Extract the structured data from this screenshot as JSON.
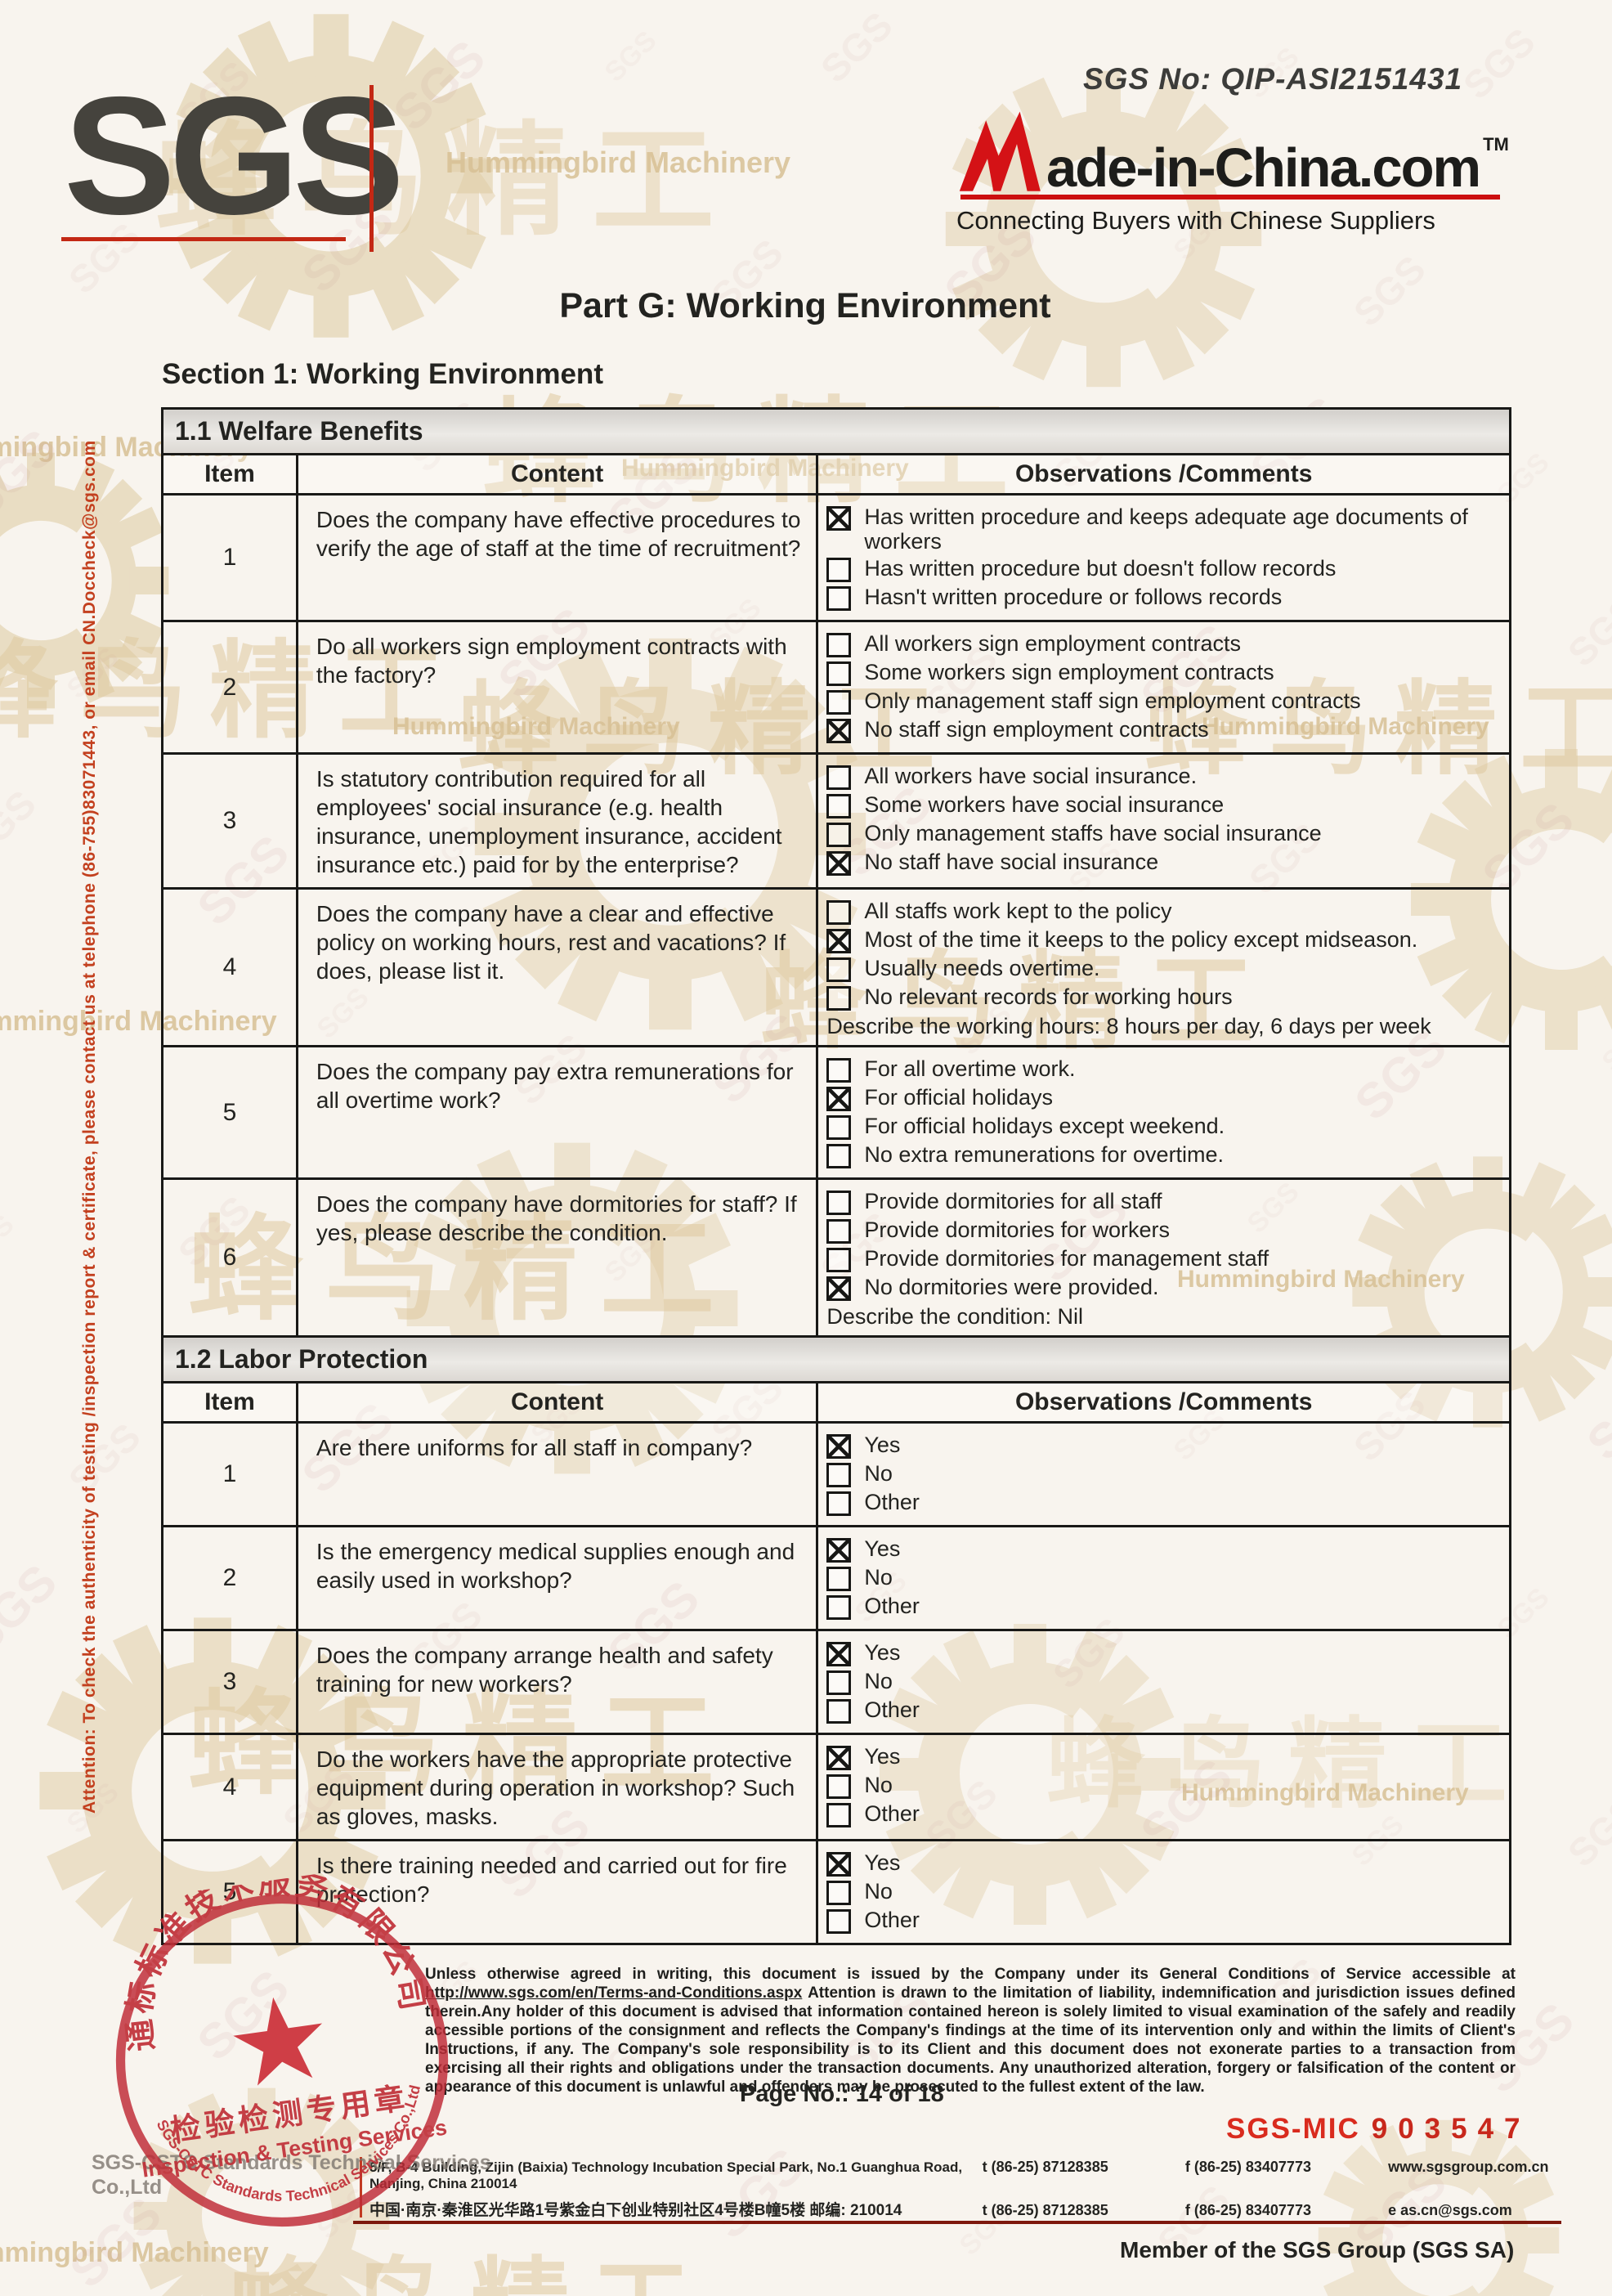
{
  "header": {
    "sgs_no": "SGS No: QIP-ASI2151431",
    "sgs_logo": "SGS",
    "mic_name": "ade-in-China.com",
    "mic_tm": "TM",
    "mic_tagline": "Connecting Buyers with Chinese Suppliers",
    "part_title": "Part G: Working Environment",
    "section_title": "Section 1: Working Environment"
  },
  "watermarks": {
    "sgs": "SGS",
    "hb_cn": "蜂鸟精工",
    "hb_en": "Hummingbird Machinery"
  },
  "attention": "Attention: To check the authenticity of testing /inspection report & certificate, please contact us at telephone  (86-755)83071443, or email  CN.Doccheck@sgs.com",
  "tables": [
    {
      "bar": "1.1 Welfare Benefits",
      "columns": [
        "Item",
        "Content",
        "Observations /Comments"
      ],
      "rows": [
        {
          "item": "1",
          "content": "Does the company have effective procedures to verify the age of staff at the time of recruitment?",
          "options": [
            {
              "checked": true,
              "label": "Has written procedure and keeps adequate age documents of workers"
            },
            {
              "checked": false,
              "label": "Has written procedure but doesn't follow records"
            },
            {
              "checked": false,
              "label": "Hasn't written procedure or follows records"
            }
          ]
        },
        {
          "item": "2",
          "content": "Do all workers sign employment contracts with the factory?",
          "options": [
            {
              "checked": false,
              "label": "All workers sign employment contracts"
            },
            {
              "checked": false,
              "label": "Some workers sign employment contracts"
            },
            {
              "checked": false,
              "label": "Only management staff sign employment contracts"
            },
            {
              "checked": true,
              "label": "No staff sign employment contracts"
            }
          ]
        },
        {
          "item": "3",
          "content": "Is statutory contribution required for all employees' social insurance (e.g. health insurance, unemployment insurance, accident insurance etc.) paid for by the enterprise?",
          "options": [
            {
              "checked": false,
              "label": "All workers have social insurance."
            },
            {
              "checked": false,
              "label": "Some workers have social insurance"
            },
            {
              "checked": false,
              "label": "Only management staffs have social insurance"
            },
            {
              "checked": true,
              "label": "No staff have social insurance"
            }
          ]
        },
        {
          "item": "4",
          "content": "Does the company have a clear and effective policy on working hours, rest and vacations? If does, please list it.",
          "options": [
            {
              "checked": false,
              "label": "All staffs work kept to the policy"
            },
            {
              "checked": true,
              "label": "Most of the time it keeps to the policy except midseason."
            },
            {
              "checked": false,
              "label": "Usually needs overtime."
            },
            {
              "checked": false,
              "label": "No relevant records for working hours"
            }
          ],
          "note": "Describe the working hours: 8 hours per day, 6 days per week"
        },
        {
          "item": "5",
          "content": "Does the company pay extra remunerations for all overtime work?",
          "options": [
            {
              "checked": false,
              "label": "For all overtime work."
            },
            {
              "checked": true,
              "label": "For official holidays"
            },
            {
              "checked": false,
              "label": "For official holidays except weekend."
            },
            {
              "checked": false,
              "label": "No extra remunerations for overtime."
            }
          ]
        },
        {
          "item": "6",
          "content": "Does the company have dormitories for staff? If yes, please describe the condition.",
          "options": [
            {
              "checked": false,
              "label": "Provide dormitories for all staff"
            },
            {
              "checked": false,
              "label": "Provide dormitories for workers"
            },
            {
              "checked": false,
              "label": "Provide dormitories for management staff"
            },
            {
              "checked": true,
              "label": "No dormitories were provided."
            }
          ],
          "note": "Describe the condition: Nil"
        }
      ]
    },
    {
      "bar": "1.2 Labor Protection",
      "columns": [
        "Item",
        "Content",
        "Observations /Comments"
      ],
      "rows": [
        {
          "item": "1",
          "content": "Are there uniforms for all staff in company?",
          "options": [
            {
              "checked": true,
              "label": "Yes"
            },
            {
              "checked": false,
              "label": "No"
            },
            {
              "checked": false,
              "label": "Other"
            }
          ]
        },
        {
          "item": "2",
          "content": "Is the emergency medical supplies enough and easily used in workshop?",
          "options": [
            {
              "checked": true,
              "label": "Yes"
            },
            {
              "checked": false,
              "label": "No"
            },
            {
              "checked": false,
              "label": "Other"
            }
          ]
        },
        {
          "item": "3",
          "content": "Does the company arrange health and safety training for new workers?",
          "options": [
            {
              "checked": true,
              "label": "Yes"
            },
            {
              "checked": false,
              "label": "No"
            },
            {
              "checked": false,
              "label": "Other"
            }
          ]
        },
        {
          "item": "4",
          "content": "Do the workers have the appropriate protective equipment during operation in workshop? Such as gloves, masks.",
          "options": [
            {
              "checked": true,
              "label": "Yes"
            },
            {
              "checked": false,
              "label": "No"
            },
            {
              "checked": false,
              "label": "Other"
            }
          ]
        },
        {
          "item": "5",
          "content": "Is there training needed and carried out for fire protection?",
          "options": [
            {
              "checked": true,
              "label": "Yes"
            },
            {
              "checked": false,
              "label": "No"
            },
            {
              "checked": false,
              "label": "Other"
            }
          ]
        }
      ]
    }
  ],
  "footer": {
    "disclaimer_pre": "Unless otherwise agreed in writing, this document is issued by the Company under its General Conditions of Service accessible at ",
    "disclaimer_url": "http://www.sgs.com/en/Terms-and-Conditions.aspx",
    "disclaimer_post": " Attention is drawn to the limitation of liability, indemnification and jurisdiction issues defined therein.Any holder of this document is advised that information contained hereon is solely limited to visual examination of the safely and readily accessible portions of the consignment and reflects the Company's findings at the time of its intervention only and within the limits of Client's Instructions, if any. The Company's sole responsibility is to its Client and this document does not exonerate parties to a transaction from exercising all their rights and obligations under the transaction documents. Any unauthorized alteration, forgery or falsification of the content or appearance of this document is unlawful and offenders may be prosecuted to the fullest extent of the law.",
    "page_no": "Page No.:  14 of 18",
    "sgs_mic_label": "SGS-MIC",
    "sgs_mic_number": "903547",
    "address1": "5/F, B-4 Building, Zijin (Baixia) Technology Incubation Special Park, No.1 Guanghua Road, Nanjing, China  210014",
    "address2": "中国·南京·秦淮区光华路1号紫金白下创业特别社区4号楼B幢5楼 邮编: 210014",
    "phone": "t (86-25) 87128385",
    "fax": "f (86-25) 83407773",
    "web": "www.sgsgroup.com.cn",
    "email": "e  as.cn@sgs.com",
    "member": "Member of the SGS Group (SGS SA)"
  },
  "stamp": {
    "arc_top": "通标标准技术服务有限公司",
    "star": "★",
    "line_cn": "检验检测专用章",
    "line_en": "Inspection & Testing Services",
    "arc_bottom": "SGS-CSTC Standards Technical Services Co.,Ltd",
    "ghost": "SGS-CSTC Standards Technical Services Co.,Ltd"
  }
}
